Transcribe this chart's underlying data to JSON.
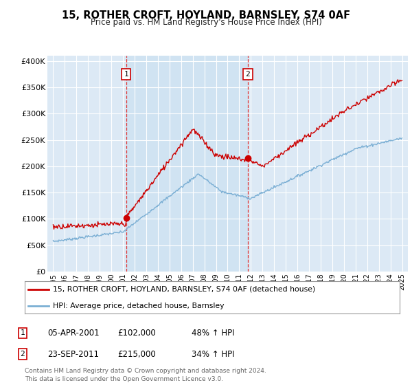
{
  "title": "15, ROTHER CROFT, HOYLAND, BARNSLEY, S74 0AF",
  "subtitle": "Price paid vs. HM Land Registry's House Price Index (HPI)",
  "plot_bg_color": "#dce9f5",
  "red_line_color": "#cc0000",
  "blue_line_color": "#7bafd4",
  "highlight_color": "#c8dff0",
  "marker1_x": 2001.27,
  "marker1_y": 102000,
  "marker2_x": 2011.73,
  "marker2_y": 215000,
  "ylim_min": 0,
  "ylim_max": 410000,
  "yticks": [
    0,
    50000,
    100000,
    150000,
    200000,
    250000,
    300000,
    350000,
    400000
  ],
  "ytick_labels": [
    "£0",
    "£50K",
    "£100K",
    "£150K",
    "£200K",
    "£250K",
    "£300K",
    "£350K",
    "£400K"
  ],
  "xlim_min": 1994.5,
  "xlim_max": 2025.5,
  "legend_label1": "15, ROTHER CROFT, HOYLAND, BARNSLEY, S74 0AF (detached house)",
  "legend_label2": "HPI: Average price, detached house, Barnsley",
  "table_row1": [
    "1",
    "05-APR-2001",
    "£102,000",
    "48% ↑ HPI"
  ],
  "table_row2": [
    "2",
    "23-SEP-2011",
    "£215,000",
    "34% ↑ HPI"
  ],
  "footnote": "Contains HM Land Registry data © Crown copyright and database right 2024.\nThis data is licensed under the Open Government Licence v3.0."
}
